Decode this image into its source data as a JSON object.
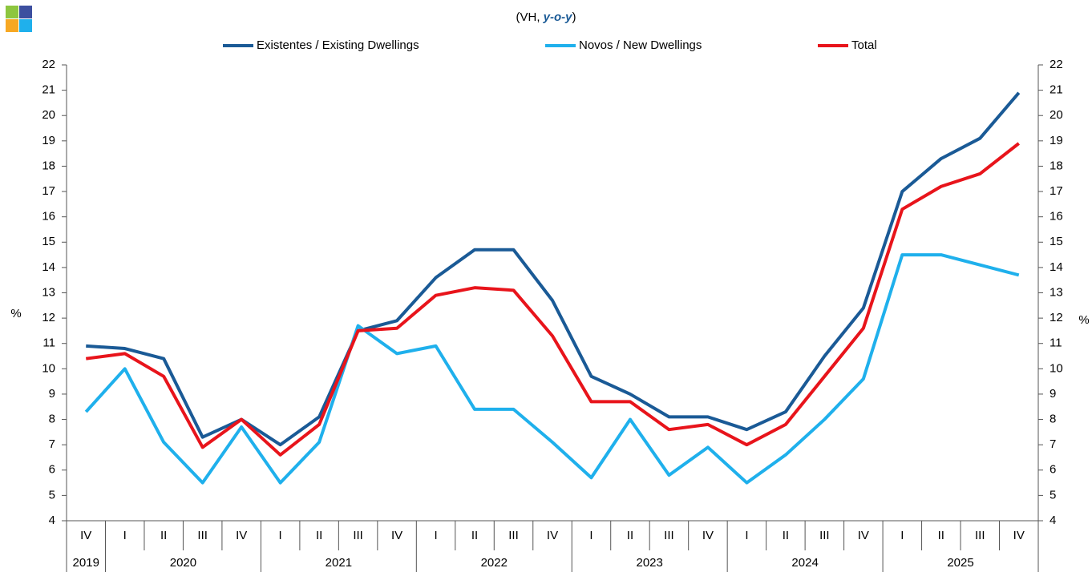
{
  "chart_data": {
    "type": "line",
    "subtitle": [
      "(VH, ",
      "y-o-y",
      ")"
    ],
    "y_label": "%",
    "y2_label": "%",
    "year_groups": [
      {
        "label": "2019",
        "quarters": [
          "IV"
        ]
      },
      {
        "label": "2020",
        "quarters": [
          "I",
          "II",
          "III",
          "IV"
        ]
      },
      {
        "label": "2021",
        "quarters": [
          "I",
          "II",
          "III",
          "IV"
        ]
      },
      {
        "label": "2022",
        "quarters": [
          "I",
          "II",
          "III",
          "IV"
        ]
      },
      {
        "label": "2023",
        "quarters": [
          "I",
          "II",
          "III",
          "IV"
        ]
      },
      {
        "label": "2024",
        "quarters": [
          "I",
          "II",
          "III",
          "IV"
        ]
      },
      {
        "label": "2025",
        "quarters": [
          "I",
          "II",
          "III",
          "IV"
        ]
      }
    ],
    "series": [
      {
        "name": "Existentes / Existing Dwellings",
        "color": "#1a5a96",
        "values": [
          10.9,
          10.8,
          10.4,
          7.3,
          8.0,
          7.0,
          8.1,
          11.5,
          11.9,
          13.6,
          14.7,
          14.7,
          12.7,
          9.7,
          9.0,
          8.1,
          8.1,
          7.6,
          8.3,
          10.5,
          12.4,
          17.0,
          18.3,
          19.1,
          20.9
        ]
      },
      {
        "name": "Novos / New Dwellings",
        "color": "#1fb0ec",
        "values": [
          8.3,
          10.0,
          7.1,
          5.5,
          7.7,
          5.5,
          7.1,
          11.7,
          10.6,
          10.9,
          8.4,
          8.4,
          7.1,
          5.7,
          8.0,
          5.8,
          6.9,
          5.5,
          6.6,
          8.0,
          9.6,
          14.5,
          14.5,
          14.1,
          13.7
        ]
      },
      {
        "name": "Total",
        "color": "#e8141b",
        "values": [
          10.4,
          10.6,
          9.7,
          6.9,
          8.0,
          6.6,
          7.8,
          11.5,
          11.6,
          12.9,
          13.2,
          13.1,
          11.3,
          8.7,
          8.7,
          7.6,
          7.8,
          7.0,
          7.8,
          9.7,
          11.6,
          16.3,
          17.2,
          17.7,
          18.9
        ]
      }
    ],
    "ylim": [
      4,
      22
    ],
    "yticks": [
      4,
      5,
      6,
      7,
      8,
      9,
      10,
      11,
      12,
      13,
      14,
      15,
      16,
      17,
      18,
      19,
      20,
      21,
      22
    ],
    "y2lim": [
      4,
      22
    ],
    "y2ticks": [
      4,
      5,
      6,
      7,
      8,
      9,
      10,
      11,
      12,
      13,
      14,
      15,
      16,
      17,
      18,
      19,
      20,
      21,
      22
    ]
  }
}
